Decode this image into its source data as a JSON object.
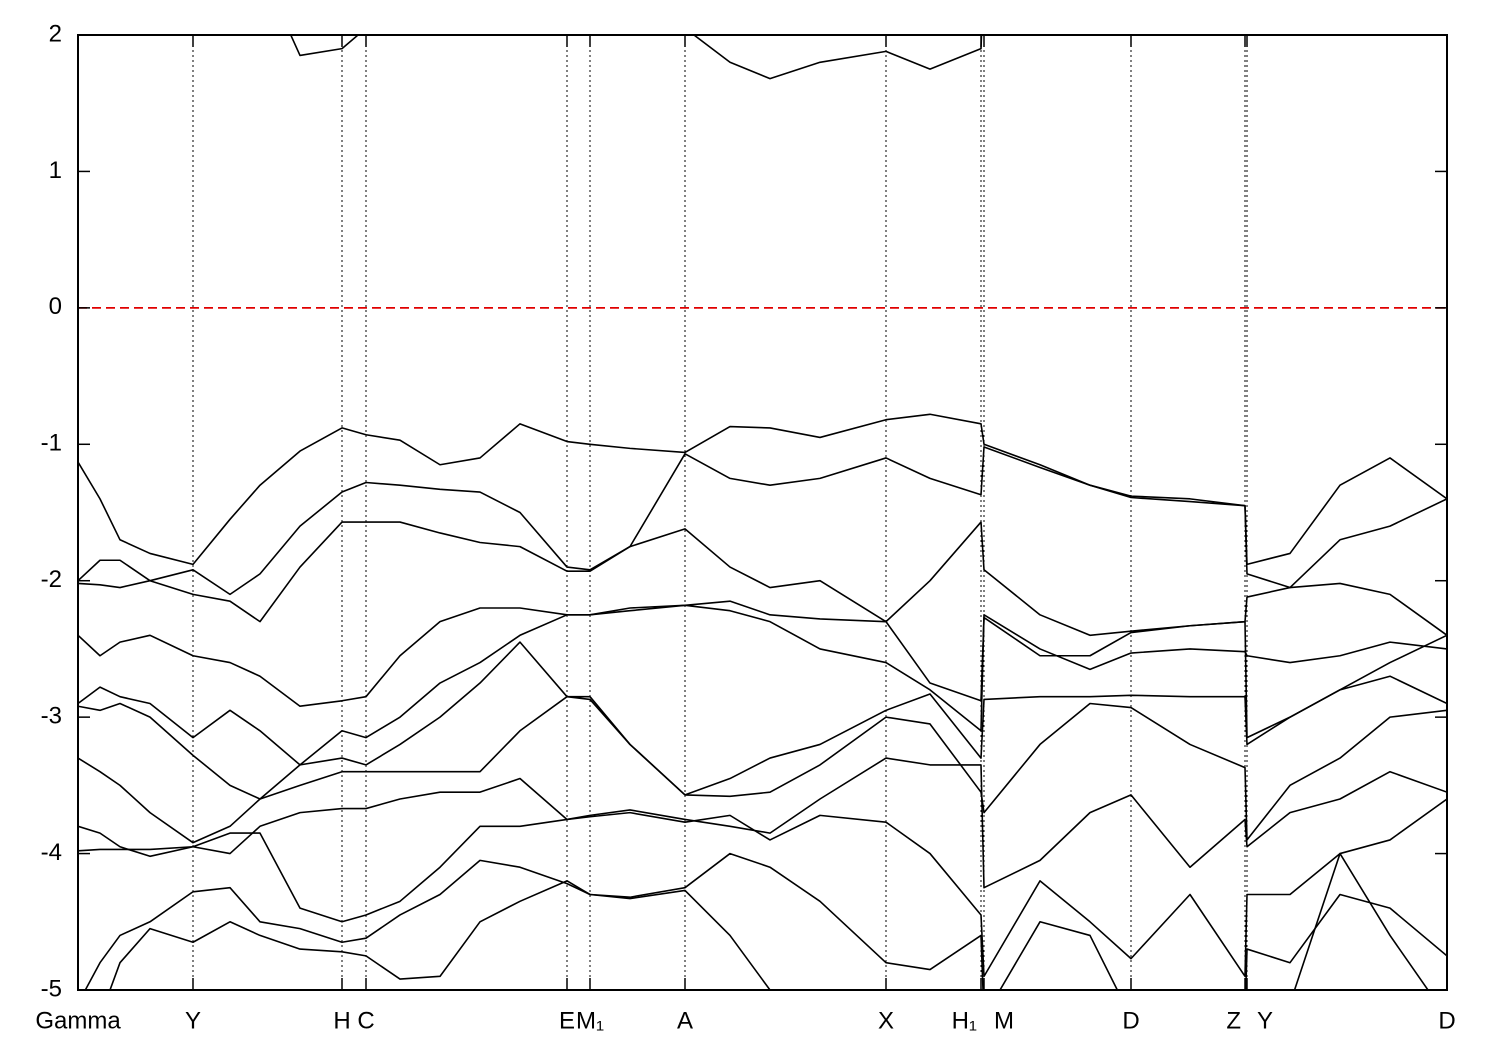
{
  "chart_data": {
    "type": "line",
    "x": [
      0,
      0.22,
      0.42,
      0.72,
      1.15,
      1.52,
      1.82,
      2.22,
      2.64,
      2.88,
      3.22,
      3.62,
      4.02,
      4.42,
      4.89,
      5.12,
      5.52,
      6.07,
      6.52,
      6.92,
      7.42,
      8.08,
      8.52,
      9.03,
      9.06,
      9.62,
      10.12,
      10.53,
      11.12,
      11.67,
      11.69,
      12.12,
      12.62,
      13.12,
      13.69
    ],
    "xlim": [
      0,
      13.69
    ],
    "xticks": [
      {
        "value": 0,
        "label": "Gamma"
      },
      {
        "value": 1.15,
        "label": "Y"
      },
      {
        "value": 2.64,
        "label": "H"
      },
      {
        "value": 2.88,
        "label": "C"
      },
      {
        "value": 4.89,
        "label": "E"
      },
      {
        "value": 5.12,
        "label": "M₁"
      },
      {
        "value": 6.07,
        "label": "A"
      },
      {
        "value": 8.08,
        "label": "X"
      },
      {
        "value": 9.03,
        "label": "H₁"
      },
      {
        "value": 9.06,
        "label": "M"
      },
      {
        "value": 10.53,
        "label": "D"
      },
      {
        "value": 11.67,
        "label": "Z"
      },
      {
        "value": 11.69,
        "label": "Y"
      },
      {
        "value": 13.69,
        "label": "D"
      }
    ],
    "ylim": [
      -5,
      2
    ],
    "yticks": [
      2,
      1,
      0,
      -1,
      -2,
      -3,
      -4,
      -5
    ],
    "fermi_level": 0,
    "fermi_color": "#e00000",
    "symmetry_lines": true,
    "series": [
      {
        "color": "#000000",
        "values": [
          2.5,
          2.5,
          2.5,
          2.5,
          2.5,
          2.5,
          2.5,
          1.85,
          1.9,
          2.05,
          2.5,
          2.5,
          2.5,
          2.5,
          2.5,
          2.5,
          2.5,
          2.05,
          1.8,
          1.68,
          1.8,
          1.88,
          1.75,
          1.9,
          2.5,
          2.5,
          2.5,
          2.5,
          2.5,
          2.5,
          2.5,
          2.5,
          2.5,
          2.5,
          2.5
        ]
      },
      {
        "color": "#000000",
        "values": [
          -1.13,
          -1.4,
          -1.7,
          -1.8,
          -1.88,
          -1.55,
          -1.3,
          -1.05,
          -0.88,
          -0.93,
          -0.97,
          -1.15,
          -1.1,
          -0.85,
          -0.98,
          -1.0,
          -1.03,
          -1.06,
          -0.87,
          -0.88,
          -0.95,
          -0.82,
          -0.78,
          -0.85,
          -1.0,
          -1.15,
          -1.3,
          -1.38,
          -1.4,
          -1.45,
          -1.88,
          -1.8,
          -1.3,
          -1.1,
          -1.4
        ]
      },
      {
        "color": "#000000",
        "values": [
          -2.0,
          -1.85,
          -1.85,
          -2.0,
          -1.92,
          -2.1,
          -1.95,
          -1.6,
          -1.35,
          -1.28,
          -1.3,
          -1.33,
          -1.35,
          -1.5,
          -1.9,
          -1.92,
          -1.75,
          -1.07,
          -1.25,
          -1.3,
          -1.25,
          -1.1,
          -1.25,
          -1.37,
          -1.02,
          -1.17,
          -1.3,
          -1.39,
          -1.42,
          -1.45,
          -1.95,
          -2.05,
          -1.7,
          -1.6,
          -1.4
        ]
      },
      {
        "color": "#000000",
        "values": [
          -2.02,
          -2.03,
          -2.05,
          -2.0,
          -2.1,
          -2.15,
          -2.3,
          -1.9,
          -1.57,
          -1.57,
          -1.57,
          -1.65,
          -1.72,
          -1.75,
          -1.93,
          -1.93,
          -1.75,
          -1.62,
          -1.9,
          -2.05,
          -2.0,
          -2.3,
          -2.0,
          -1.57,
          -1.92,
          -2.25,
          -2.4,
          -2.37,
          -2.33,
          -2.3,
          -2.12,
          -2.05,
          -2.02,
          -2.1,
          -2.4
        ]
      },
      {
        "color": "#000000",
        "values": [
          -2.4,
          -2.55,
          -2.45,
          -2.4,
          -2.55,
          -2.6,
          -2.7,
          -2.92,
          -2.88,
          -2.85,
          -2.55,
          -2.3,
          -2.2,
          -2.2,
          -2.25,
          -2.25,
          -2.22,
          -2.18,
          -2.22,
          -2.3,
          -2.5,
          -2.6,
          -2.8,
          -3.1,
          -2.25,
          -2.5,
          -2.65,
          -2.53,
          -2.5,
          -2.52,
          -2.55,
          -2.6,
          -2.55,
          -2.45,
          -2.5
        ]
      },
      {
        "color": "#000000",
        "values": [
          -2.9,
          -2.78,
          -2.85,
          -2.9,
          -3.15,
          -2.95,
          -3.1,
          -3.35,
          -3.1,
          -3.15,
          -3.0,
          -2.75,
          -2.6,
          -2.4,
          -2.25,
          -2.25,
          -2.2,
          -2.18,
          -2.15,
          -2.25,
          -2.28,
          -2.3,
          -2.75,
          -2.88,
          -2.27,
          -2.55,
          -2.55,
          -2.38,
          -2.33,
          -2.3,
          -3.15,
          -3.0,
          -2.8,
          -2.6,
          -2.4
        ]
      },
      {
        "color": "#000000",
        "values": [
          -2.92,
          -2.95,
          -2.9,
          -3.0,
          -3.28,
          -3.5,
          -3.6,
          -3.5,
          -3.4,
          -3.4,
          -3.4,
          -3.4,
          -3.4,
          -3.1,
          -2.85,
          -2.87,
          -3.2,
          -3.57,
          -3.45,
          -3.3,
          -3.2,
          -2.95,
          -2.83,
          -3.3,
          -2.87,
          -2.85,
          -2.85,
          -2.84,
          -2.85,
          -2.85,
          -3.2,
          -3.0,
          -2.8,
          -2.7,
          -2.9
        ]
      },
      {
        "color": "#000000",
        "values": [
          -3.3,
          -3.4,
          -3.5,
          -3.7,
          -3.92,
          -3.8,
          -3.6,
          -3.35,
          -3.3,
          -3.35,
          -3.2,
          -3.0,
          -2.75,
          -2.45,
          -2.85,
          -2.85,
          -3.2,
          -3.57,
          -3.58,
          -3.55,
          -3.35,
          -3.0,
          -3.05,
          -3.55,
          -3.7,
          -3.2,
          -2.9,
          -2.93,
          -3.2,
          -3.37,
          -3.9,
          -3.5,
          -3.3,
          -3.0,
          -2.95
        ]
      },
      {
        "color": "#000000",
        "values": [
          -3.8,
          -3.85,
          -3.95,
          -4.02,
          -3.95,
          -4.0,
          -3.8,
          -3.7,
          -3.67,
          -3.67,
          -3.6,
          -3.55,
          -3.55,
          -3.45,
          -3.75,
          -3.72,
          -3.68,
          -3.75,
          -3.8,
          -3.85,
          -3.6,
          -3.3,
          -3.35,
          -3.35,
          -4.25,
          -4.05,
          -3.7,
          -3.57,
          -4.1,
          -3.75,
          -3.95,
          -3.7,
          -3.6,
          -3.4,
          -3.55
        ]
      },
      {
        "color": "#000000",
        "values": [
          -3.98,
          -3.97,
          -3.97,
          -3.97,
          -3.95,
          -3.85,
          -3.85,
          -4.4,
          -4.5,
          -4.45,
          -4.35,
          -4.1,
          -3.8,
          -3.8,
          -3.75,
          -3.73,
          -3.7,
          -3.77,
          -3.72,
          -3.9,
          -3.72,
          -3.77,
          -4.0,
          -4.45,
          -4.9,
          -4.2,
          -4.5,
          -4.77,
          -4.3,
          -4.9,
          -4.3,
          -4.3,
          -4.0,
          -3.9,
          -3.6
        ]
      },
      {
        "color": "#000000",
        "values": [
          -5.1,
          -4.8,
          -4.6,
          -4.5,
          -4.28,
          -4.25,
          -4.5,
          -4.55,
          -4.65,
          -4.62,
          -4.45,
          -4.3,
          -4.05,
          -4.1,
          -4.22,
          -4.3,
          -4.32,
          -4.25,
          -4.0,
          -4.1,
          -4.35,
          -4.8,
          -4.85,
          -4.6,
          -5.2,
          -4.5,
          -4.6,
          -5.2,
          -5.2,
          -5.2,
          -4.7,
          -4.8,
          -4.3,
          -4.4,
          -4.75
        ]
      },
      {
        "color": "#000000",
        "values": [
          -5.5,
          -5.2,
          -4.8,
          -4.55,
          -4.65,
          -4.5,
          -4.6,
          -4.7,
          -4.72,
          -4.75,
          -4.92,
          -4.9,
          -4.5,
          -4.35,
          -4.2,
          -4.3,
          -4.33,
          -4.27,
          -4.6,
          -5.0,
          -5.5,
          -5.5,
          -5.5,
          -5.5,
          -5.5,
          -5.5,
          -5.5,
          -5.5,
          -5.5,
          -5.5,
          -5.5,
          -5.1,
          -4.0,
          -4.6,
          -5.2
        ]
      }
    ]
  }
}
